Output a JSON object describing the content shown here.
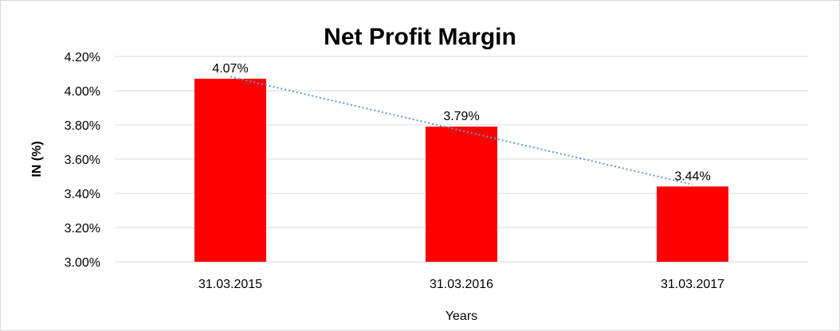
{
  "chart_data": {
    "type": "bar",
    "title": "Net Profit Margin",
    "xlabel": "Years",
    "ylabel": "IN (%)",
    "categories": [
      "31.03.2015",
      "31.03.2016",
      "31.03.2017"
    ],
    "values": [
      4.07,
      3.79,
      3.44
    ],
    "data_labels": [
      "4.07%",
      "3.79%",
      "3.44%"
    ],
    "ylim": [
      3.0,
      4.2
    ],
    "yticks": [
      3.0,
      3.2,
      3.4,
      3.6,
      3.8,
      4.0,
      4.2
    ],
    "ytick_labels": [
      "3.00%",
      "3.20%",
      "3.40%",
      "3.60%",
      "3.80%",
      "4.00%",
      "4.20%"
    ],
    "grid": true,
    "trendline": "linear",
    "colors": {
      "bar": "#ff0000",
      "trendline": "#5b9bd5",
      "grid": "#d9d9d9"
    }
  }
}
